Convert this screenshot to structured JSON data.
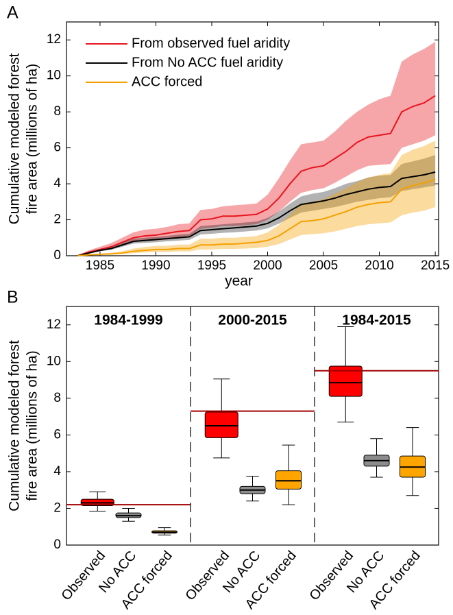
{
  "chart_data": [
    {
      "type": "line",
      "panel_label": "A",
      "x": [
        1983,
        1984,
        1985,
        1986,
        1987,
        1988,
        1989,
        1990,
        1991,
        1992,
        1993,
        1994,
        1995,
        1996,
        1997,
        1998,
        1999,
        2000,
        2001,
        2002,
        2003,
        2004,
        2005,
        2006,
        2007,
        2008,
        2009,
        2010,
        2011,
        2012,
        2013,
        2014,
        2015
      ],
      "xlim": [
        1982,
        2015.3
      ],
      "xticks": [
        1985,
        1990,
        1995,
        2000,
        2005,
        2010,
        2015
      ],
      "ylim": [
        0,
        13
      ],
      "yticks": [
        0,
        2,
        4,
        6,
        8,
        10,
        12
      ],
      "x_label": "year",
      "y_label": [
        "Cumulative modeled forest",
        "fire area (millions of ha)"
      ],
      "legend": "upper left",
      "series": [
        {
          "name": "From observed fuel aridity",
          "color": "#e8141e",
          "values": [
            0,
            0.2,
            0.35,
            0.5,
            0.75,
            1.0,
            1.1,
            1.15,
            1.25,
            1.35,
            1.4,
            2.0,
            2.05,
            2.2,
            2.2,
            2.25,
            2.3,
            2.6,
            3.2,
            4.0,
            4.7,
            4.9,
            5.0,
            5.4,
            5.8,
            6.3,
            6.6,
            6.7,
            6.8,
            8.0,
            8.3,
            8.5,
            8.9
          ],
          "upper": [
            0,
            0.3,
            0.5,
            0.7,
            1.0,
            1.3,
            1.45,
            1.5,
            1.6,
            1.75,
            1.8,
            2.55,
            2.6,
            2.75,
            2.8,
            2.85,
            2.9,
            3.4,
            4.3,
            5.3,
            6.2,
            6.3,
            6.4,
            6.9,
            7.5,
            8.0,
            8.4,
            8.7,
            8.9,
            10.8,
            11.2,
            11.5,
            11.9
          ],
          "lower": [
            0,
            0.15,
            0.25,
            0.38,
            0.55,
            0.75,
            0.82,
            0.85,
            0.92,
            1.0,
            1.05,
            1.5,
            1.55,
            1.65,
            1.65,
            1.7,
            1.75,
            2.0,
            2.45,
            3.0,
            3.5,
            3.65,
            3.75,
            4.05,
            4.4,
            4.75,
            5.0,
            5.05,
            5.1,
            6.0,
            6.2,
            6.4,
            6.7
          ]
        },
        {
          "name": "From No ACC fuel aridity",
          "color": "#000000",
          "values": [
            0,
            0.15,
            0.3,
            0.4,
            0.6,
            0.8,
            0.85,
            0.9,
            0.95,
            1.0,
            1.05,
            1.4,
            1.45,
            1.5,
            1.55,
            1.6,
            1.65,
            1.8,
            2.1,
            2.5,
            2.85,
            2.95,
            3.05,
            3.2,
            3.4,
            3.55,
            3.7,
            3.8,
            3.85,
            4.3,
            4.4,
            4.5,
            4.65
          ],
          "upper": [
            0,
            0.18,
            0.36,
            0.48,
            0.72,
            0.95,
            1.0,
            1.05,
            1.1,
            1.17,
            1.22,
            1.65,
            1.7,
            1.75,
            1.8,
            1.85,
            1.9,
            2.1,
            2.45,
            2.9,
            3.3,
            3.45,
            3.55,
            3.75,
            4.0,
            4.15,
            4.35,
            4.45,
            4.5,
            5.1,
            5.25,
            5.4,
            5.6
          ],
          "lower": [
            0,
            0.12,
            0.25,
            0.33,
            0.5,
            0.67,
            0.71,
            0.75,
            0.8,
            0.84,
            0.88,
            1.18,
            1.22,
            1.27,
            1.3,
            1.35,
            1.4,
            1.52,
            1.78,
            2.1,
            2.4,
            2.5,
            2.6,
            2.7,
            2.85,
            3.0,
            3.1,
            3.2,
            3.25,
            3.6,
            3.7,
            3.8,
            3.9
          ]
        },
        {
          "name": "ACC forced",
          "color": "#f5a000",
          "values": [
            0,
            0.05,
            0.08,
            0.1,
            0.15,
            0.25,
            0.3,
            0.35,
            0.35,
            0.4,
            0.4,
            0.6,
            0.6,
            0.65,
            0.65,
            0.7,
            0.75,
            0.85,
            1.1,
            1.5,
            1.9,
            1.95,
            2.05,
            2.25,
            2.45,
            2.7,
            2.85,
            2.95,
            3.0,
            3.7,
            3.9,
            4.05,
            4.25
          ],
          "upper": [
            0,
            0.08,
            0.12,
            0.16,
            0.25,
            0.4,
            0.48,
            0.55,
            0.55,
            0.62,
            0.62,
            0.95,
            0.95,
            1.0,
            1.0,
            1.05,
            1.1,
            1.3,
            1.7,
            2.3,
            2.9,
            3.0,
            3.15,
            3.45,
            3.75,
            4.1,
            4.35,
            4.5,
            4.6,
            5.6,
            5.9,
            6.1,
            6.4
          ],
          "lower": [
            0,
            0.03,
            0.05,
            0.06,
            0.09,
            0.15,
            0.18,
            0.21,
            0.21,
            0.24,
            0.24,
            0.35,
            0.35,
            0.38,
            0.38,
            0.4,
            0.43,
            0.5,
            0.65,
            0.9,
            1.15,
            1.2,
            1.25,
            1.35,
            1.5,
            1.65,
            1.75,
            1.8,
            1.85,
            2.25,
            2.4,
            2.5,
            2.7
          ]
        }
      ]
    },
    {
      "type": "box",
      "panel_label": "B",
      "ylim": [
        0,
        13
      ],
      "yticks": [
        0,
        2,
        4,
        6,
        8,
        10,
        12
      ],
      "y_label": [
        "Cumulative modeled forest",
        "fire area (millions of ha)"
      ],
      "observed_color": "#a00000",
      "groups": [
        {
          "name": "1984-1999",
          "observed": 2.2,
          "boxes": [
            {
              "name": "Observed",
              "color": "#ff0000",
              "whislo": 1.85,
              "q1": 2.15,
              "median": 2.3,
              "q3": 2.5,
              "whishi": 2.9
            },
            {
              "name": "No ACC",
              "color": "#8c8c8c",
              "whislo": 1.3,
              "q1": 1.5,
              "median": 1.6,
              "q3": 1.75,
              "whishi": 2.0
            },
            {
              "name": "ACC forced",
              "color": "#ffa500",
              "whislo": 0.55,
              "q1": 0.65,
              "median": 0.7,
              "q3": 0.78,
              "whishi": 0.95
            }
          ]
        },
        {
          "name": "2000-2015",
          "observed": 7.3,
          "boxes": [
            {
              "name": "Observed",
              "color": "#ff0000",
              "whislo": 4.75,
              "q1": 5.85,
              "median": 6.5,
              "q3": 7.25,
              "whishi": 9.05
            },
            {
              "name": "No ACC",
              "color": "#8c8c8c",
              "whislo": 2.4,
              "q1": 2.8,
              "median": 3.0,
              "q3": 3.2,
              "whishi": 3.75
            },
            {
              "name": "ACC forced",
              "color": "#ffa500",
              "whislo": 2.2,
              "q1": 3.05,
              "median": 3.5,
              "q3": 4.05,
              "whishi": 5.45
            }
          ]
        },
        {
          "name": "1984-2015",
          "observed": 9.5,
          "boxes": [
            {
              "name": "Observed",
              "color": "#ff0000",
              "whislo": 6.7,
              "q1": 8.1,
              "median": 8.85,
              "q3": 9.75,
              "whishi": 11.9
            },
            {
              "name": "No ACC",
              "color": "#8c8c8c",
              "whislo": 3.7,
              "q1": 4.3,
              "median": 4.6,
              "q3": 4.9,
              "whishi": 5.8
            },
            {
              "name": "ACC forced",
              "color": "#ffa500",
              "whislo": 2.7,
              "q1": 3.7,
              "median": 4.25,
              "q3": 4.85,
              "whishi": 6.4
            }
          ]
        }
      ]
    }
  ]
}
